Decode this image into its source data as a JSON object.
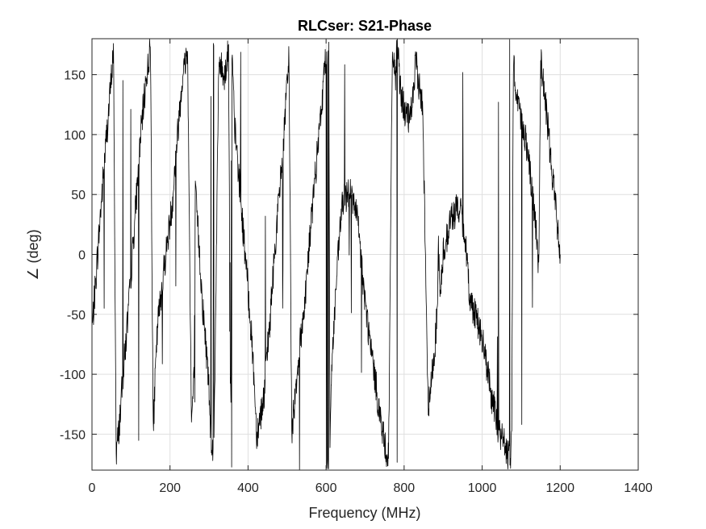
{
  "chart_data": {
    "type": "line",
    "title": "RLCser: S21-Phase",
    "xlabel": "Frequency (MHz)",
    "ylabel": "∠ (deg)",
    "xlim": [
      0,
      1400
    ],
    "ylim": [
      -180,
      180
    ],
    "xticks": [
      0,
      200,
      400,
      600,
      800,
      1000,
      1200,
      1400
    ],
    "yticks": [
      -150,
      -100,
      -50,
      0,
      50,
      100,
      150
    ],
    "grid": true,
    "box": true,
    "line_color": "#000000",
    "grid_color": "#dfdfdf",
    "axis_color": "#262626",
    "series": [
      {
        "noise_deg": 14,
        "x": [
          1,
          10,
          22,
          35,
          48,
          55,
          62,
          68,
          80,
          95,
          110,
          125,
          140,
          150,
          157,
          160,
          168,
          185,
          205,
          218,
          232,
          245,
          255,
          262,
          265,
          272,
          283,
          298,
          305,
          312,
          325,
          340,
          350,
          356,
          358,
          365,
          385,
          405,
          415,
          422,
          440,
          455,
          470,
          488,
          500,
          505,
          512,
          525,
          545,
          565,
          585,
          600,
          607,
          610,
          615,
          625,
          640,
          660,
          680,
          700,
          715,
          728,
          745,
          760,
          770,
          778,
          782,
          790,
          800,
          815,
          830,
          848,
          862,
          875,
          885,
          888,
          892,
          900,
          920,
          940,
          955,
          962,
          970,
          985,
          1005,
          1025,
          1045,
          1060,
          1072,
          1076,
          1080,
          1090,
          1110,
          1125,
          1138,
          1145,
          1150,
          1155,
          1170,
          1185,
          1198,
          1200
        ],
        "y": [
          -60,
          -20,
          35,
          90,
          140,
          172,
          -165,
          -150,
          -100,
          -40,
          30,
          100,
          150,
          172,
          -150,
          -120,
          -60,
          -10,
          40,
          95,
          150,
          170,
          -140,
          -100,
          50,
          20,
          -40,
          -100,
          -150,
          -175,
          160,
          150,
          170,
          -130,
          175,
          110,
          30,
          -50,
          -100,
          -150,
          -120,
          -60,
          10,
          80,
          140,
          165,
          -150,
          -100,
          -40,
          40,
          110,
          170,
          178,
          -150,
          -90,
          -30,
          40,
          55,
          30,
          -40,
          -80,
          -110,
          -150,
          -172,
          170,
          150,
          175,
          140,
          120,
          110,
          160,
          120,
          -130,
          -90,
          -50,
          10,
          -40,
          0,
          30,
          40,
          20,
          -10,
          -40,
          -50,
          -80,
          -120,
          -150,
          -160,
          -175,
          -140,
          160,
          130,
          100,
          60,
          20,
          -10,
          160,
          150,
          100,
          50,
          10,
          0
        ]
      }
    ]
  }
}
